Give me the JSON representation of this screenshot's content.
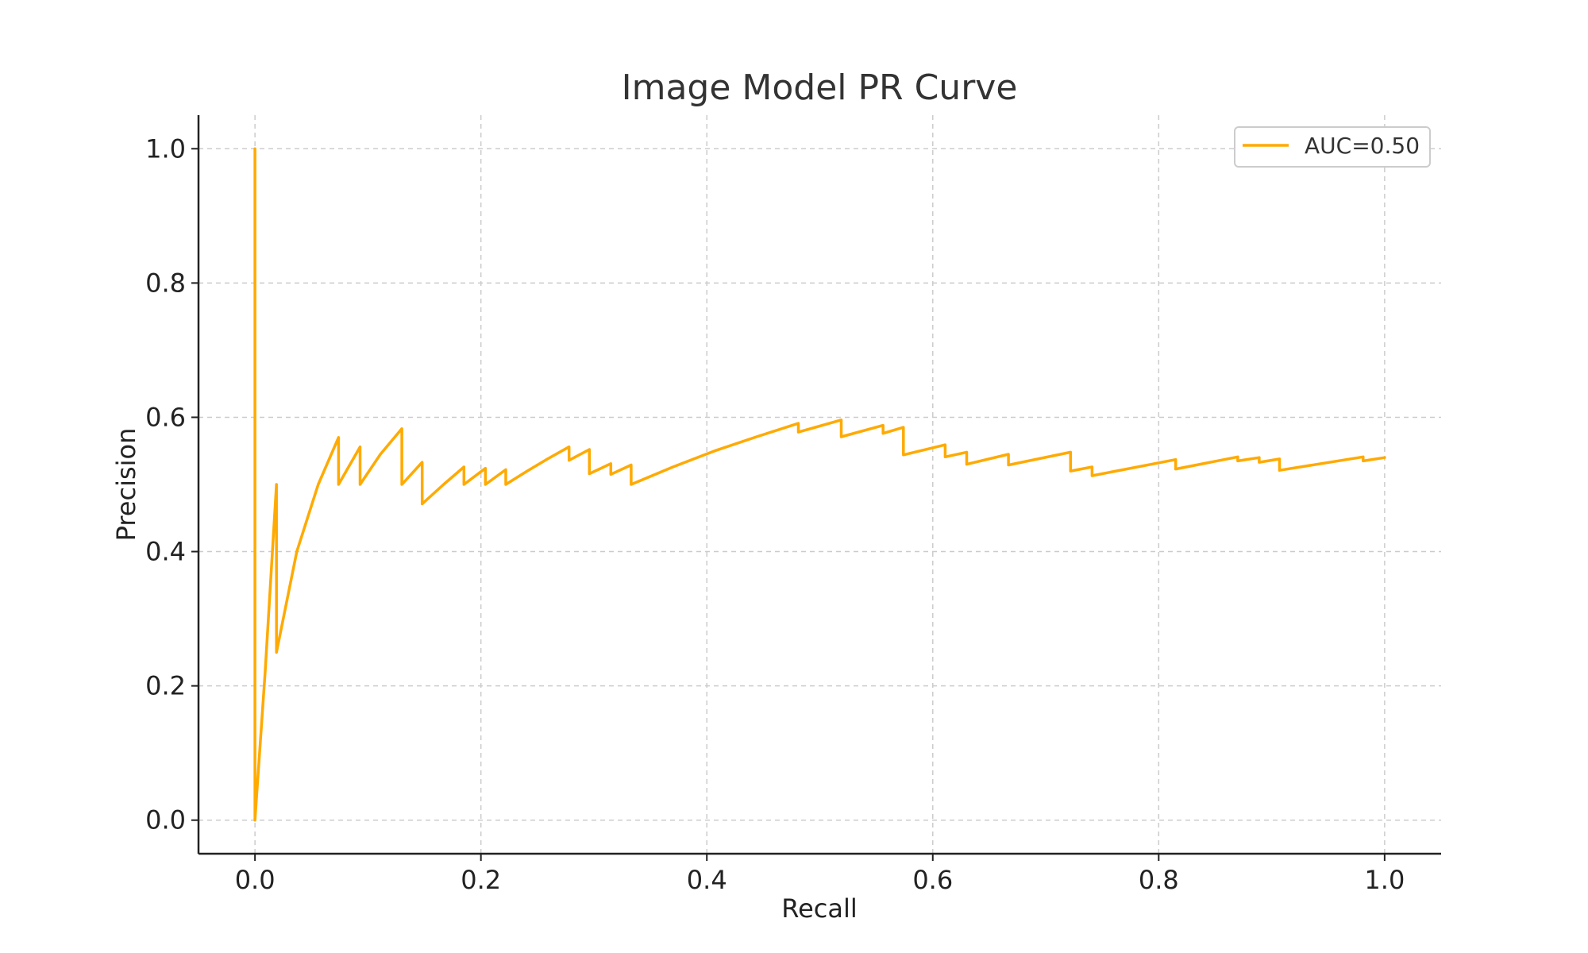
{
  "chart_data": {
    "type": "line",
    "title": "Image Model PR Curve",
    "xlabel": "Recall",
    "ylabel": "Precision",
    "xlim": [
      -0.05,
      1.05
    ],
    "ylim": [
      -0.05,
      1.05
    ],
    "x_ticks": [
      "0.0",
      "0.2",
      "0.4",
      "0.6",
      "0.8",
      "1.0"
    ],
    "y_ticks": [
      "0.0",
      "0.2",
      "0.4",
      "0.6",
      "0.8",
      "1.0"
    ],
    "grid": true,
    "legend_position": "top-right",
    "series": [
      {
        "name": "AUC=0.50",
        "color": "#FFAA00",
        "x": [
          0.0,
          0.0,
          0.0,
          0.009,
          0.019,
          0.019,
          0.037,
          0.056,
          0.074,
          0.074,
          0.093,
          0.093,
          0.111,
          0.13,
          0.13,
          0.148,
          0.148,
          0.167,
          0.185,
          0.185,
          0.204,
          0.204,
          0.222,
          0.222,
          0.241,
          0.259,
          0.278,
          0.278,
          0.296,
          0.296,
          0.315,
          0.315,
          0.333,
          0.333,
          0.37,
          0.407,
          0.444,
          0.481,
          0.481,
          0.519,
          0.519,
          0.556,
          0.556,
          0.574,
          0.574,
          0.611,
          0.611,
          0.63,
          0.63,
          0.667,
          0.667,
          0.722,
          0.722,
          0.741,
          0.741,
          0.815,
          0.815,
          0.87,
          0.87,
          0.889,
          0.889,
          0.907,
          0.907,
          0.981,
          0.981,
          1.0
        ],
        "y": [
          1.0,
          0.0,
          0.0,
          0.22,
          0.5,
          0.25,
          0.4,
          0.5,
          0.57,
          0.5,
          0.556,
          0.5,
          0.545,
          0.583,
          0.5,
          0.533,
          0.471,
          0.5,
          0.526,
          0.5,
          0.524,
          0.5,
          0.522,
          0.5,
          0.52,
          0.538,
          0.556,
          0.536,
          0.552,
          0.516,
          0.531,
          0.515,
          0.529,
          0.5,
          0.526,
          0.55,
          0.571,
          0.591,
          0.578,
          0.596,
          0.571,
          0.588,
          0.576,
          0.585,
          0.544,
          0.559,
          0.541,
          0.548,
          0.53,
          0.545,
          0.529,
          0.548,
          0.52,
          0.526,
          0.513,
          0.537,
          0.523,
          0.541,
          0.535,
          0.54,
          0.533,
          0.538,
          0.521,
          0.541,
          0.535,
          0.54
        ]
      }
    ]
  }
}
